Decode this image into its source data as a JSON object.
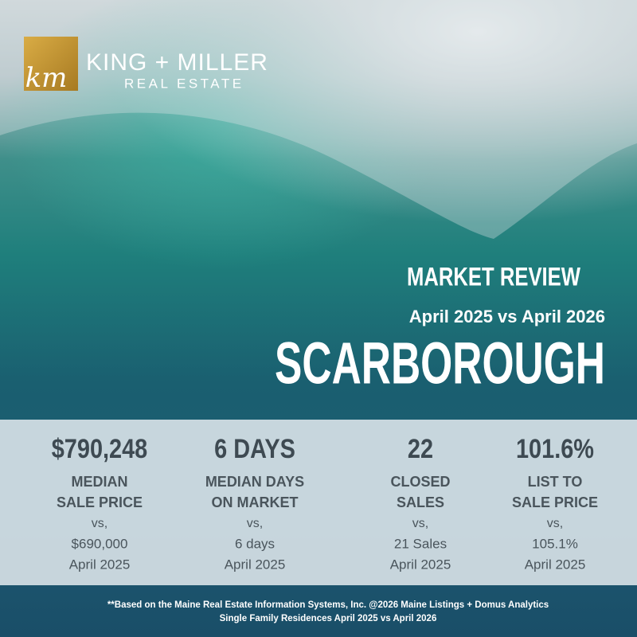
{
  "logo": {
    "monogram": "km",
    "name": "KING + MILLER",
    "tagline": "REAL ESTATE"
  },
  "header": {
    "kicker": "MARKET REVIEW",
    "period": "April 2025 vs April 2026",
    "title": "SCARBOROUGH"
  },
  "stats": [
    {
      "value": "$790,248",
      "label": [
        "MEDIAN",
        "SALE PRICE"
      ],
      "vs": "vs,",
      "previous": "$690,000",
      "previous_period": "April 2025"
    },
    {
      "value": "6 DAYS",
      "label": [
        "MEDIAN DAYS",
        "ON MARKET"
      ],
      "vs": "vs,",
      "previous": "6 days",
      "previous_period": "April 2025"
    },
    {
      "value": "22",
      "label": [
        "CLOSED",
        "SALES"
      ],
      "vs": "vs,",
      "previous": "21 Sales",
      "previous_period": "April 2025"
    },
    {
      "value": "101.6%",
      "label": [
        "LIST TO",
        "SALE PRICE"
      ],
      "vs": "vs,",
      "previous": "105.1%",
      "previous_period": "April 2025"
    }
  ],
  "footer": [
    "**Based on the Maine Real Estate Information Systems, Inc. @2026 Maine Listings + Domus Analytics",
    "Single Family Residences April 2025 vs April 2026"
  ]
}
